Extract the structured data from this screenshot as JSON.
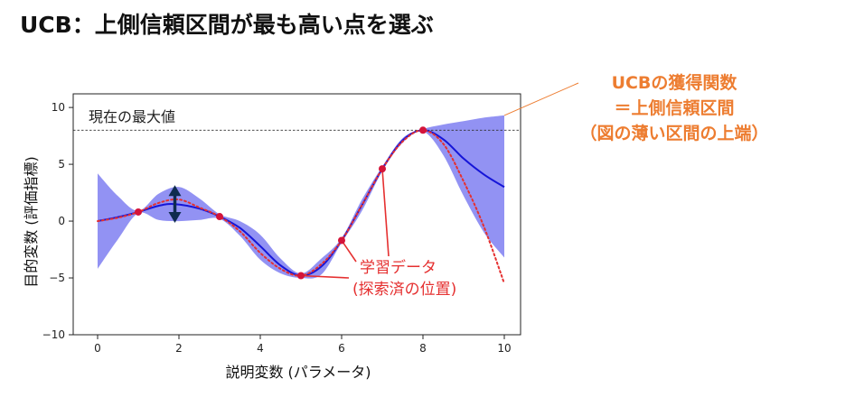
{
  "title": "UCB：上側信頼区間が最も高い点を選ぶ",
  "callout": {
    "lines": [
      "UCBの獲得関数",
      "＝上側信頼区間",
      "（図の薄い区間の上端）"
    ],
    "color": "#ED7D31"
  },
  "chart_data": {
    "type": "line",
    "xlabel": "説明変数 (パラメータ)",
    "ylabel": "目的変数 (評価指標)",
    "xlim": [
      -0.6,
      10.4
    ],
    "ylim": [
      -10,
      11.2
    ],
    "x_ticks": [
      0,
      2,
      4,
      6,
      8,
      10
    ],
    "y_ticks": [
      -10,
      -5,
      0,
      5,
      10
    ],
    "grid": false,
    "best_value": 8,
    "best_label": "現在の最大値",
    "observations": {
      "name": "学習データ",
      "label_lines": [
        "学習データ",
        "(探索済の位置)"
      ],
      "x": [
        1,
        3,
        5,
        6,
        7,
        8
      ],
      "y": [
        0.8,
        0.4,
        -4.8,
        -1.7,
        4.6,
        8.0
      ]
    },
    "series": [
      {
        "name": "predicted_mean",
        "style": "solid",
        "color": "#1515D8",
        "x": [
          0,
          0.5,
          1,
          1.5,
          1.9,
          2.5,
          3,
          3.5,
          4,
          4.5,
          5,
          5.5,
          6,
          6.5,
          7,
          7.5,
          8,
          8.5,
          9,
          9.5,
          10
        ],
        "y": [
          0.0,
          0.35,
          0.8,
          1.35,
          1.5,
          1.1,
          0.4,
          -0.6,
          -2.2,
          -3.9,
          -4.8,
          -4.0,
          -1.7,
          1.4,
          4.6,
          7.1,
          8.0,
          7.2,
          5.5,
          4.1,
          3.0
        ]
      },
      {
        "name": "true_function",
        "style": "dotted",
        "color": "#E53030",
        "x": [
          0,
          0.5,
          1,
          1.5,
          2,
          2.5,
          3,
          3.5,
          4,
          4.5,
          5,
          5.5,
          6,
          6.5,
          7,
          7.5,
          8,
          8.5,
          9,
          9.5,
          10
        ],
        "y": [
          0.0,
          0.3,
          0.8,
          1.6,
          1.9,
          1.2,
          0.4,
          -0.9,
          -2.8,
          -4.2,
          -4.8,
          -3.8,
          -1.7,
          1.4,
          4.6,
          7.0,
          8.0,
          6.8,
          3.5,
          -0.5,
          -5.5
        ]
      }
    ],
    "confidence_band": {
      "color": "#7A7AF0",
      "x": [
        0,
        0.5,
        1,
        1.5,
        2,
        2.5,
        3,
        3.5,
        4,
        4.5,
        5,
        5.5,
        6,
        6.5,
        7,
        7.5,
        8,
        8.5,
        9,
        9.5,
        10
      ],
      "upper": [
        4.2,
        2.2,
        0.9,
        2.4,
        3.0,
        2.0,
        0.6,
        0.0,
        -1.2,
        -3.3,
        -4.6,
        -3.3,
        -1.5,
        1.9,
        4.8,
        7.3,
        8.1,
        8.5,
        8.8,
        9.1,
        9.3
      ],
      "lower": [
        -4.2,
        -1.6,
        0.7,
        0.1,
        0.0,
        0.1,
        0.2,
        -1.3,
        -3.4,
        -4.6,
        -5.0,
        -4.7,
        -1.9,
        0.9,
        4.4,
        6.9,
        7.9,
        5.8,
        2.2,
        -1.0,
        -3.2
      ]
    },
    "arrow": {
      "x": 1.9,
      "y_top": 3.0,
      "y_bottom": 0.0,
      "color": "#0E2B4E"
    }
  }
}
